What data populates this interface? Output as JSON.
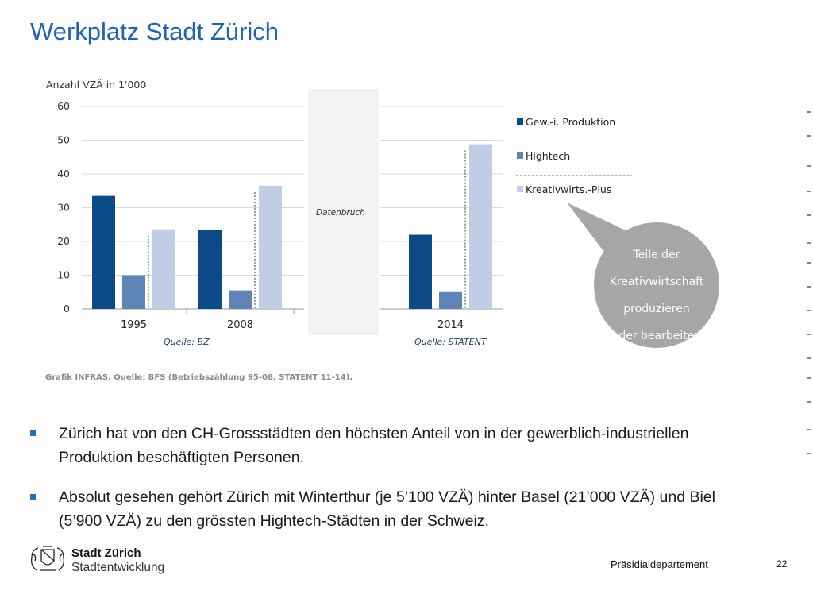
{
  "slide": {
    "title": "Werkplatz Stadt Zürich",
    "department": "Präsidialdepartement",
    "page_number": "22"
  },
  "org": {
    "name": "Stadt Zürich",
    "subtitle": "Stadtentwicklung"
  },
  "bullets": [
    "Zürich hat von den CH-Grossstädten den höchsten Anteil von in der gewerblich-industriellen Produktion beschäftigten Personen.",
    "Absolut gesehen gehört Zürich mit Winterthur (je 5’100 VZÄ) hinter Basel (21’000 VZÄ) und Biel (5’900 VZÄ) zu den grössten Hightech-Städten in der Schweiz."
  ],
  "chart_data": {
    "type": "bar",
    "ylabel": "Anzahl VZÄ in 1'000",
    "ylim": [
      0,
      60
    ],
    "yticks": [
      0,
      10,
      20,
      30,
      40,
      50,
      60
    ],
    "grid": true,
    "categories": [
      "1995",
      "2008",
      "2014"
    ],
    "series": [
      {
        "name": "Gew.-i. Produktion",
        "color": "#0b4a86",
        "values": [
          33.5,
          23.3,
          22.0
        ]
      },
      {
        "name": "Hightech",
        "color": "#5f84b8",
        "values": [
          10.0,
          5.5,
          5.0
        ]
      },
      {
        "name": "Kreativwirts.-Plus",
        "color": "#c1cde4",
        "values": [
          23.6,
          36.5,
          48.8
        ]
      }
    ],
    "data_break_label": "Datenbruch",
    "sources": [
      "Quelle: BZ",
      "Quelle: STATENT"
    ],
    "footnote": "Grafik INFRAS. Quelle: BFS (Betriebszählung 95-08, STATENT 11-14).",
    "legend_placement": "right",
    "callout_lines": [
      "Teile der",
      "Kreativwirtschaft",
      "produzieren",
      "oder bearbeiten"
    ]
  }
}
